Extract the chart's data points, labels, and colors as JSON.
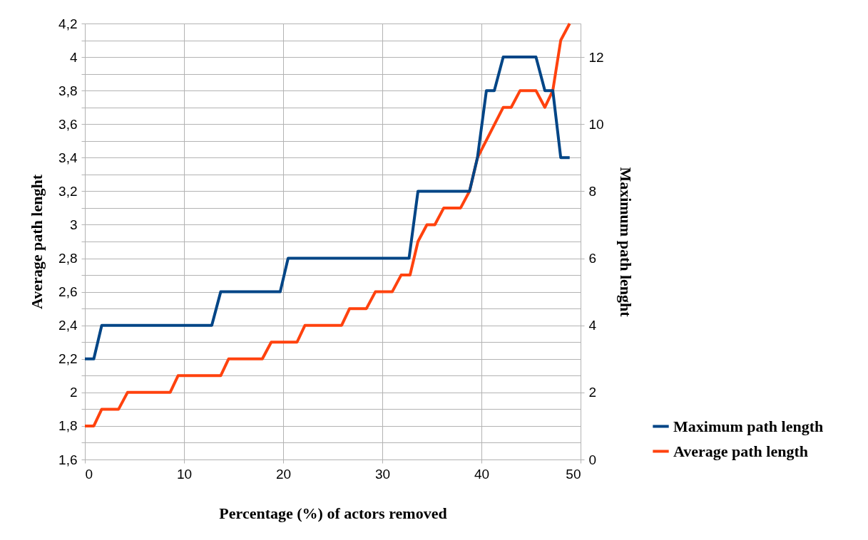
{
  "chart_data": {
    "type": "line",
    "xlabel": "Percentage (%) of actors removed",
    "ylabel": "Average path lenght",
    "y2label": "Maximum path lenght",
    "xlim": [
      0,
      50
    ],
    "xticks": [
      0,
      10,
      20,
      30,
      40,
      50
    ],
    "ylim": [
      1.6,
      4.2
    ],
    "yticks": [
      {
        "value": 1.6,
        "label": "1,6"
      },
      {
        "value": 1.7,
        "label": null
      },
      {
        "value": 1.8,
        "label": "1,8"
      },
      {
        "value": 1.9,
        "label": null
      },
      {
        "value": 2,
        "label": "2"
      },
      {
        "value": 2.1,
        "label": null
      },
      {
        "value": 2.2,
        "label": "2,2"
      },
      {
        "value": 2.3,
        "label": null
      },
      {
        "value": 2.4,
        "label": "2,4"
      },
      {
        "value": 2.5,
        "label": null
      },
      {
        "value": 2.6,
        "label": "2,6"
      },
      {
        "value": 2.7,
        "label": null
      },
      {
        "value": 2.8,
        "label": "2,8"
      },
      {
        "value": 2.9,
        "label": null
      },
      {
        "value": 3,
        "label": "3"
      },
      {
        "value": 3.1,
        "label": null
      },
      {
        "value": 3.2,
        "label": "3,2"
      },
      {
        "value": 3.3,
        "label": null
      },
      {
        "value": 3.4,
        "label": "3,4"
      },
      {
        "value": 3.5,
        "label": null
      },
      {
        "value": 3.6,
        "label": "3,6"
      },
      {
        "value": 3.7,
        "label": null
      },
      {
        "value": 3.8,
        "label": "3,8"
      },
      {
        "value": 3.9,
        "label": null
      },
      {
        "value": 4,
        "label": "4"
      },
      {
        "value": 4.1,
        "label": null
      },
      {
        "value": 4.2,
        "label": "4,2"
      }
    ],
    "y2lim": [
      0,
      13
    ],
    "y2ticks": [
      0,
      2,
      4,
      6,
      8,
      10,
      12
    ],
    "grid": true,
    "legend": "right",
    "marker": "none",
    "line_style": "solid",
    "series": [
      {
        "name": "Maximum path length",
        "color": "#004586",
        "axis": "y2",
        "x": [
          0,
          0.9,
          1.7,
          12.8,
          13.7,
          19.7,
          20.5,
          32.7,
          33.6,
          38.8,
          39.6,
          40.5,
          41.3,
          42.2,
          45.5,
          46.4,
          47.2,
          48,
          48.9
        ],
        "values": [
          3,
          3,
          4,
          4,
          5,
          5,
          6,
          6,
          8,
          8,
          9,
          11,
          11,
          12,
          12,
          11,
          11,
          9,
          9
        ]
      },
      {
        "name": "Average path length",
        "color": "#ff420e",
        "x": [
          0,
          0.9,
          1.7,
          3.4,
          4.3,
          8.6,
          9.4,
          13.7,
          14.5,
          17.9,
          18.8,
          21.4,
          22.2,
          25.9,
          26.7,
          28.4,
          29.3,
          31,
          31.9,
          32.8,
          33.6,
          34.5,
          35.3,
          36.2,
          37.9,
          38.8,
          39.6,
          42.2,
          43,
          43.9,
          45.5,
          46.4,
          47.2,
          48,
          48.9
        ],
        "values": [
          1.8,
          1.8,
          1.9,
          1.9,
          2,
          2,
          2.1,
          2.1,
          2.2,
          2.2,
          2.3,
          2.3,
          2.4,
          2.4,
          2.5,
          2.5,
          2.6,
          2.6,
          2.7,
          2.7,
          2.9,
          3,
          3,
          3.1,
          3.1,
          3.2,
          3.4,
          3.7,
          3.7,
          3.8,
          3.8,
          3.7,
          3.8,
          4.1,
          4.2
        ]
      }
    ]
  }
}
